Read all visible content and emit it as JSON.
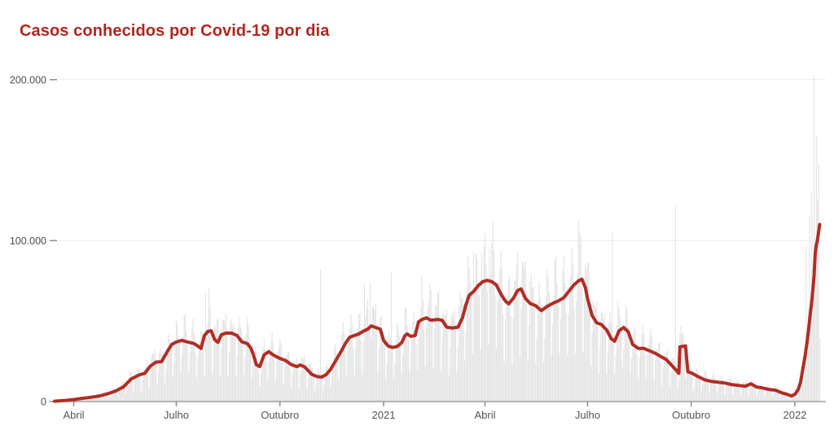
{
  "chart_data": {
    "type": "bar",
    "title": "Casos conhecidos por Covid-19 por dia",
    "title_color": "#b3261e",
    "bar_color": "#e2e2e2",
    "line_color": "#b12d26",
    "axis_color": "#8c8c8c",
    "grid_color": "#ececec",
    "tick_label_color": "#4d4d4d",
    "ylim": [
      0,
      210000
    ],
    "total_days": 680,
    "grid": "horizontal-only",
    "legend": "none",
    "y_ticks": [
      {
        "label": "0",
        "value": 0
      },
      {
        "label": "100.000",
        "value": 100000
      },
      {
        "label": "200.000",
        "value": 200000
      }
    ],
    "x_ticks": [
      {
        "label": "Abril",
        "day": 17
      },
      {
        "label": "Julho",
        "day": 108
      },
      {
        "label": "Outubro",
        "day": 200
      },
      {
        "label": "2021",
        "day": 292
      },
      {
        "label": "Abril",
        "day": 382
      },
      {
        "label": "Julho",
        "day": 473
      },
      {
        "label": "Outubro",
        "day": 565
      },
      {
        "label": "2022",
        "day": 657
      }
    ],
    "line_series": {
      "name": "media-movel-7-dias",
      "points": [
        [
          0,
          200
        ],
        [
          8,
          600
        ],
        [
          17,
          1200
        ],
        [
          25,
          2000
        ],
        [
          32,
          2600
        ],
        [
          40,
          3500
        ],
        [
          47,
          4800
        ],
        [
          54,
          6500
        ],
        [
          61,
          9000
        ],
        [
          68,
          14000
        ],
        [
          75,
          16500
        ],
        [
          80,
          17500
        ],
        [
          85,
          22000
        ],
        [
          90,
          24500
        ],
        [
          95,
          24800
        ],
        [
          100,
          31000
        ],
        [
          104,
          35500
        ],
        [
          108,
          37000
        ],
        [
          113,
          38000
        ],
        [
          118,
          37000
        ],
        [
          124,
          36000
        ],
        [
          128,
          34000
        ],
        [
          130,
          33000
        ],
        [
          133,
          41000
        ],
        [
          136,
          43500
        ],
        [
          139,
          44000
        ],
        [
          142,
          38500
        ],
        [
          145,
          36800
        ],
        [
          148,
          41500
        ],
        [
          152,
          42500
        ],
        [
          157,
          42500
        ],
        [
          162,
          41000
        ],
        [
          166,
          37200
        ],
        [
          171,
          36000
        ],
        [
          174,
          33500
        ],
        [
          176,
          30000
        ],
        [
          179,
          23000
        ],
        [
          182,
          21700
        ],
        [
          186,
          29000
        ],
        [
          190,
          31000
        ],
        [
          194,
          29000
        ],
        [
          197,
          27800
        ],
        [
          200,
          26800
        ],
        [
          205,
          25500
        ],
        [
          210,
          23000
        ],
        [
          215,
          21700
        ],
        [
          218,
          22700
        ],
        [
          222,
          21500
        ],
        [
          228,
          17000
        ],
        [
          233,
          15500
        ],
        [
          237,
          15200
        ],
        [
          241,
          16700
        ],
        [
          245,
          20000
        ],
        [
          250,
          26000
        ],
        [
          255,
          32000
        ],
        [
          258,
          36000
        ],
        [
          262,
          40000
        ],
        [
          266,
          41000
        ],
        [
          270,
          42000
        ],
        [
          274,
          43700
        ],
        [
          278,
          45000
        ],
        [
          281,
          47000
        ],
        [
          285,
          46000
        ],
        [
          289,
          45000
        ],
        [
          292,
          38000
        ],
        [
          296,
          34500
        ],
        [
          300,
          33600
        ],
        [
          304,
          34200
        ],
        [
          308,
          36500
        ],
        [
          311,
          41000
        ],
        [
          313,
          42000
        ],
        [
          316,
          40500
        ],
        [
          320,
          41000
        ],
        [
          323,
          49500
        ],
        [
          326,
          51000
        ],
        [
          330,
          52000
        ],
        [
          334,
          50500
        ],
        [
          340,
          51000
        ],
        [
          344,
          50500
        ],
        [
          348,
          46200
        ],
        [
          353,
          45700
        ],
        [
          358,
          46200
        ],
        [
          362,
          52000
        ],
        [
          365,
          60000
        ],
        [
          368,
          66000
        ],
        [
          372,
          68500
        ],
        [
          376,
          72000
        ],
        [
          380,
          74500
        ],
        [
          384,
          75300
        ],
        [
          388,
          74500
        ],
        [
          392,
          72500
        ],
        [
          396,
          67000
        ],
        [
          400,
          62500
        ],
        [
          403,
          60700
        ],
        [
          407,
          64000
        ],
        [
          411,
          69000
        ],
        [
          414,
          70000
        ],
        [
          418,
          64000
        ],
        [
          422,
          61000
        ],
        [
          427,
          59500
        ],
        [
          432,
          56500
        ],
        [
          437,
          59000
        ],
        [
          442,
          61000
        ],
        [
          447,
          62500
        ],
        [
          452,
          64500
        ],
        [
          457,
          69000
        ],
        [
          461,
          72500
        ],
        [
          465,
          75000
        ],
        [
          468,
          76000
        ],
        [
          471,
          71000
        ],
        [
          473,
          64000
        ],
        [
          477,
          53500
        ],
        [
          481,
          49000
        ],
        [
          485,
          48000
        ],
        [
          490,
          44500
        ],
        [
          494,
          39000
        ],
        [
          497,
          37500
        ],
        [
          501,
          44000
        ],
        [
          505,
          46000
        ],
        [
          509,
          43500
        ],
        [
          513,
          35500
        ],
        [
          518,
          33000
        ],
        [
          523,
          33000
        ],
        [
          528,
          31500
        ],
        [
          533,
          30000
        ],
        [
          538,
          28000
        ],
        [
          543,
          26000
        ],
        [
          547,
          23000
        ],
        [
          551,
          20000
        ],
        [
          554,
          17500
        ],
        [
          555,
          34000
        ],
        [
          560,
          34500
        ],
        [
          562,
          18500
        ],
        [
          566,
          17500
        ],
        [
          571,
          15500
        ],
        [
          577,
          13500
        ],
        [
          583,
          12500
        ],
        [
          589,
          12000
        ],
        [
          595,
          11500
        ],
        [
          601,
          10500
        ],
        [
          607,
          10000
        ],
        [
          613,
          9500
        ],
        [
          618,
          11000
        ],
        [
          623,
          9000
        ],
        [
          628,
          8500
        ],
        [
          634,
          7500
        ],
        [
          640,
          7000
        ],
        [
          645,
          5500
        ],
        [
          650,
          4500
        ],
        [
          654,
          3500
        ],
        [
          657,
          4500
        ],
        [
          660,
          7500
        ],
        [
          662,
          12000
        ],
        [
          664,
          20000
        ],
        [
          666,
          28000
        ],
        [
          668,
          38000
        ],
        [
          670,
          50000
        ],
        [
          672,
          62000
        ],
        [
          674,
          78000
        ],
        [
          675,
          92000
        ],
        [
          676,
          97000
        ],
        [
          677,
          100000
        ],
        [
          678,
          105000
        ],
        [
          679,
          110000
        ]
      ]
    },
    "bars": {
      "weekly_pattern": [
        0.42,
        0.78,
        1.1,
        1.26,
        1.3,
        1.22,
        0.95
      ],
      "outliers": [
        [
          134,
          67000
        ],
        [
          137,
          70000
        ],
        [
          236,
          82000
        ],
        [
          275,
          73000
        ],
        [
          280,
          74000
        ],
        [
          299,
          80000
        ],
        [
          326,
          78000
        ],
        [
          367,
          90000
        ],
        [
          372,
          93000
        ],
        [
          379,
          92000
        ],
        [
          386,
          95000
        ],
        [
          465,
          112000
        ],
        [
          495,
          105000
        ],
        [
          551,
          122000
        ],
        [
          667,
          97000
        ],
        [
          670,
          115000
        ],
        [
          672,
          130000
        ],
        [
          674,
          202000
        ],
        [
          676,
          165000
        ],
        [
          678,
          148000
        ]
      ]
    }
  }
}
